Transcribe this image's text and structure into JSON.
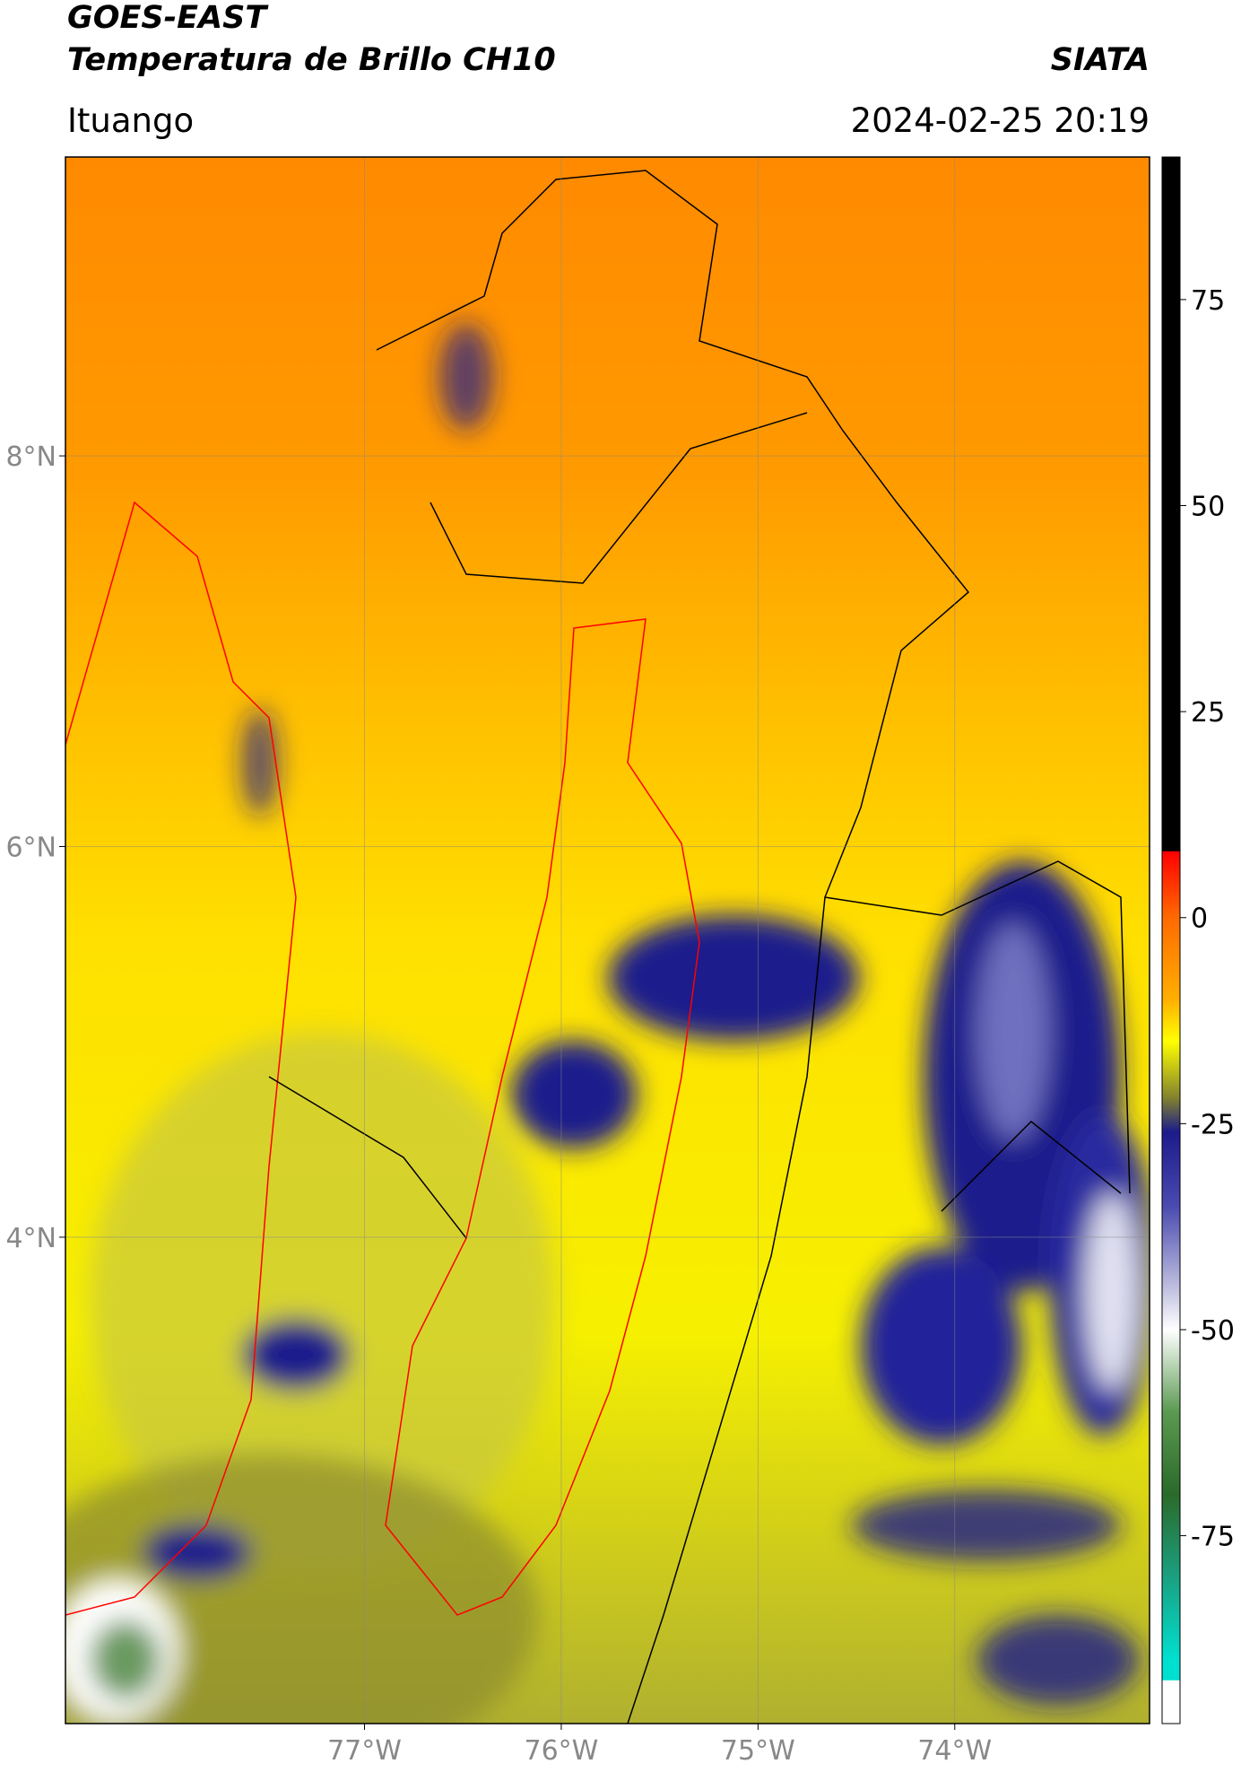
{
  "header": {
    "title": "GOES-EAST",
    "subtitle": "Temperatura de Brillo CH10",
    "brand": "SIATA",
    "location": "Ituango",
    "timestamp": "2024-02-25 20:19"
  },
  "map": {
    "xlim": [
      -78.52,
      -73.01
    ],
    "ylim": [
      1.51,
      9.53
    ],
    "xticks": [
      {
        "value": -77,
        "label": "77°W"
      },
      {
        "value": -76,
        "label": "76°W"
      },
      {
        "value": -75,
        "label": "75°W"
      },
      {
        "value": -74,
        "label": "74°W"
      }
    ],
    "yticks": [
      {
        "value": 8,
        "label": "8°N"
      },
      {
        "value": 6,
        "label": "6°N"
      },
      {
        "value": 4,
        "label": "4°N"
      }
    ],
    "grid": true
  },
  "colorbar": {
    "lim": [
      -97.8,
      92.3
    ],
    "ticks": [
      75,
      50,
      25,
      0,
      -25,
      -50,
      -75
    ],
    "colormap": [
      [
        92.3,
        "#000000"
      ],
      [
        8.1,
        "#000000"
      ],
      [
        8,
        "#ff0000"
      ],
      [
        0,
        "#ff6a00"
      ],
      [
        -10,
        "#ffb000"
      ],
      [
        -15,
        "#ffff00"
      ],
      [
        -22,
        "#7f7f30"
      ],
      [
        -26,
        "#1b1b8c"
      ],
      [
        -35,
        "#4a4ab0"
      ],
      [
        -45,
        "#c0c0e0"
      ],
      [
        -50,
        "#ffffff"
      ],
      [
        -60,
        "#5a9a50"
      ],
      [
        -70,
        "#2a6a2a"
      ],
      [
        -80,
        "#1aa080"
      ],
      [
        -90,
        "#00e0d0"
      ],
      [
        -92.5,
        "#00e0d0"
      ],
      [
        -92.6,
        "#ffffff"
      ],
      [
        -97.8,
        "#ffffff"
      ]
    ]
  }
}
